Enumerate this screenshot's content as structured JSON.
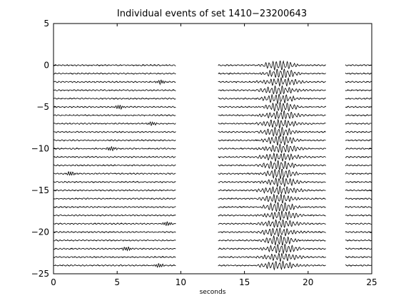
{
  "chart_data": {
    "type": "line",
    "title": "Individual events of set 1410−23200643",
    "xlabel": "seconds",
    "ylabel": "",
    "xlim": [
      0,
      25
    ],
    "ylim": [
      -25,
      5
    ],
    "xticks": [
      0,
      5,
      10,
      15,
      20,
      25
    ],
    "yticks": [
      5,
      0,
      -5,
      -10,
      -15,
      -20,
      -25
    ],
    "grid": false,
    "line_color": "#000000",
    "trace_count": 25,
    "trace_spacing": 1,
    "trace_offsets": [
      0,
      -1,
      -2,
      -3,
      -4,
      -5,
      -6,
      -7,
      -8,
      -9,
      -10,
      -11,
      -12,
      -13,
      -14,
      -15,
      -16,
      -17,
      -18,
      -19,
      -20,
      -21,
      -22,
      -23,
      -24
    ],
    "data_gaps_seconds": [
      [
        9.6,
        12.9
      ],
      [
        21.4,
        22.9
      ]
    ],
    "main_arrival_window_seconds": [
      15.9,
      20.3
    ]
  }
}
